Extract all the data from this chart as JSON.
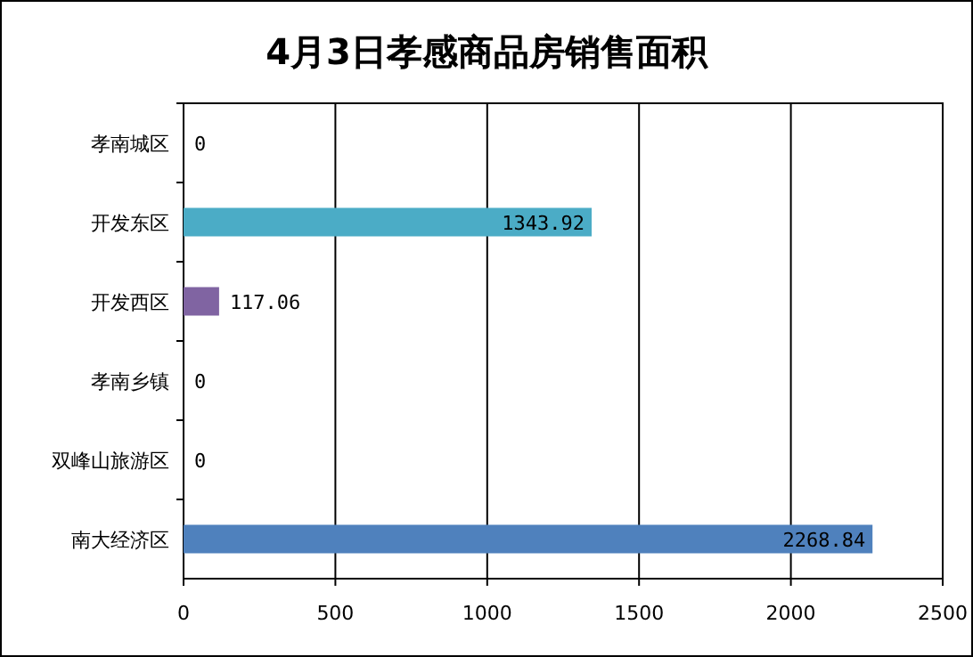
{
  "chart_data": {
    "type": "bar",
    "orientation": "horizontal",
    "title": "4月3日孝感商品房销售面积",
    "categories": [
      "孝南城区",
      "开发东区",
      "开发西区",
      "孝南乡镇",
      "双峰山旅游区",
      "南大经济区"
    ],
    "values": [
      0,
      1343.92,
      117.06,
      0,
      0,
      2268.84
    ],
    "colors": [
      null,
      "#4bacc6",
      "#8064a2",
      null,
      null,
      "#4f81bd"
    ],
    "xlim": [
      0,
      2500
    ],
    "xticks": [
      0,
      500,
      1000,
      1500,
      2000,
      2500
    ],
    "grid": "x",
    "data_labels": true
  }
}
